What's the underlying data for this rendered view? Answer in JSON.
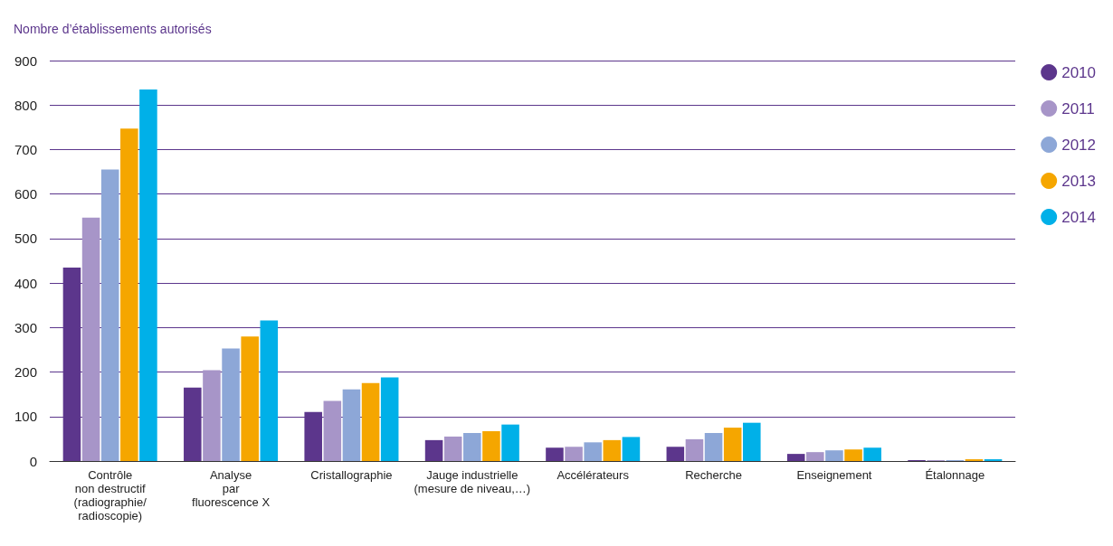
{
  "chart_data": {
    "type": "bar",
    "ylabel": "Nombre d’établissements autorisés",
    "categories": [
      "Contrôle\nnon destructif\n(radiographie/\nradioscopie)",
      "Analyse\npar\nfluorescence X",
      "Cristallographie",
      "Jauge industrielle\n(mesure de niveau,…)",
      "Accélérateurs",
      "Recherche",
      "Enseignement",
      "Étalonnage"
    ],
    "series": [
      {
        "name": "2010",
        "color": "#5c368c",
        "values": [
          435,
          165,
          110,
          47,
          30,
          32,
          16,
          2
        ]
      },
      {
        "name": "2011",
        "color": "#a795c8",
        "values": [
          547,
          204,
          135,
          55,
          32,
          49,
          20,
          2
        ]
      },
      {
        "name": "2012",
        "color": "#8da7d7",
        "values": [
          655,
          253,
          161,
          63,
          42,
          63,
          24,
          2
        ]
      },
      {
        "name": "2013",
        "color": "#f5a600",
        "values": [
          747,
          280,
          175,
          67,
          47,
          75,
          26,
          4
        ]
      },
      {
        "name": "2014",
        "color": "#00b0e8",
        "values": [
          835,
          316,
          188,
          82,
          54,
          86,
          30,
          4
        ]
      }
    ],
    "ylim": [
      0,
      900
    ],
    "yticks": [
      0,
      100,
      200,
      300,
      400,
      500,
      600,
      700,
      800,
      900
    ],
    "grid": "y",
    "legend": "top right"
  }
}
